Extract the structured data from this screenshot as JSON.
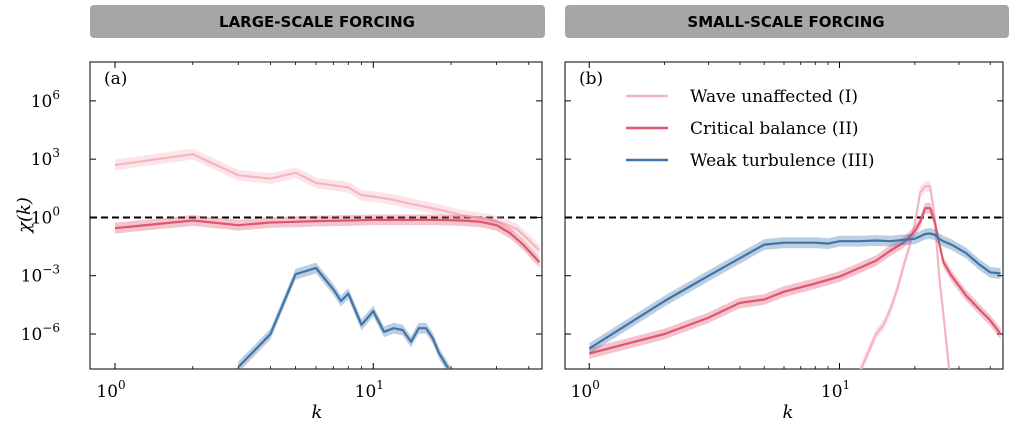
{
  "banners": {
    "left": "LARGE-SCALE FORCING",
    "right": "SMALL-SCALE FORCING"
  },
  "colors": {
    "banner": "#a6a6a6",
    "wave": "#f5b5c0",
    "critical": "#e05570",
    "weak": "#3f74a8",
    "reference": "#000000"
  },
  "chart_data": [
    {
      "type": "line",
      "panel_label": "(a)",
      "xlabel": "k",
      "ylabel": "χ(k)",
      "xscale": "log",
      "yscale": "log",
      "xlim": [
        0.8,
        45
      ],
      "ylim_log10": [
        -7.8,
        8
      ],
      "xticks": [
        {
          "value": 1,
          "base": "10",
          "exp": "0"
        },
        {
          "value": 10,
          "base": "10",
          "exp": "1"
        }
      ],
      "yticks": [
        {
          "value": 1000000.0,
          "base": "10",
          "exp": "6"
        },
        {
          "value": 1000.0,
          "base": "10",
          "exp": "3"
        },
        {
          "value": 1,
          "base": "10",
          "exp": "0"
        },
        {
          "value": 0.001,
          "base": "10",
          "exp": "−3"
        },
        {
          "value": 1e-06,
          "base": "10",
          "exp": "−6"
        }
      ],
      "reference_line": {
        "y": 1,
        "style": "dashed"
      },
      "series": [
        {
          "key": "wave",
          "x": [
            1,
            2,
            3,
            4,
            5,
            6,
            7,
            8,
            9,
            10,
            12,
            14,
            16,
            18,
            20,
            22,
            25,
            28,
            32,
            36,
            40,
            44
          ],
          "y": [
            500,
            1800,
            150,
            100,
            200,
            60,
            45,
            35,
            14,
            12,
            8,
            5,
            3.5,
            2.5,
            1.8,
            1.3,
            1.0,
            0.8,
            0.5,
            0.25,
            0.07,
            0.02
          ]
        },
        {
          "key": "critical",
          "x": [
            1,
            2,
            3,
            4,
            5,
            6,
            8,
            10,
            14,
            18,
            22,
            26,
            30,
            34,
            38,
            44
          ],
          "y": [
            0.28,
            0.7,
            0.4,
            0.55,
            0.6,
            0.65,
            0.7,
            0.75,
            0.75,
            0.75,
            0.7,
            0.6,
            0.4,
            0.15,
            0.04,
            0.005
          ]
        },
        {
          "key": "weak",
          "x": [
            3,
            3.5,
            4,
            5,
            6,
            7,
            7.5,
            8,
            9,
            10,
            11,
            12,
            13,
            14,
            15,
            16,
            17,
            18,
            20
          ],
          "y": [
            2e-08,
            1.6e-07,
            1e-06,
            0.0012,
            0.0025,
            0.0002,
            5e-05,
            0.00012,
            3e-06,
            1.5e-05,
            1.3e-06,
            2e-06,
            1.6e-06,
            4e-07,
            2e-06,
            2e-06,
            6e-07,
            1e-07,
            1e-08
          ]
        }
      ]
    },
    {
      "type": "line",
      "panel_label": "(b)",
      "xlabel": "k",
      "ylabel": "",
      "xscale": "log",
      "yscale": "log",
      "xlim": [
        0.8,
        45
      ],
      "ylim_log10": [
        -7.8,
        8
      ],
      "xticks": [
        {
          "value": 1,
          "base": "10",
          "exp": "0"
        },
        {
          "value": 10,
          "base": "10",
          "exp": "1"
        }
      ],
      "reference_line": {
        "y": 1,
        "style": "dashed"
      },
      "legend": {
        "position": "top-center",
        "entries": [
          {
            "key": "wave",
            "label": "Wave unaffected (I)"
          },
          {
            "key": "critical",
            "label": "Critical balance (II)"
          },
          {
            "key": "weak",
            "label": "Weak turbulence (III)"
          }
        ]
      },
      "series": [
        {
          "key": "wave",
          "x": [
            12,
            14,
            15,
            16,
            17,
            18,
            19,
            20,
            21,
            22,
            23,
            24,
            25,
            26,
            27,
            28
          ],
          "y": [
            1e-08,
            1e-06,
            3e-06,
            2e-05,
            0.0002,
            0.003,
            0.03,
            0.5,
            20,
            40,
            40,
            1.0,
            0.001,
            1e-05,
            1e-07,
            1e-09
          ]
        },
        {
          "key": "critical",
          "x": [
            1,
            2,
            3,
            4,
            5,
            6,
            8,
            10,
            12,
            14,
            16,
            18,
            20,
            21,
            22,
            23,
            24,
            25,
            26,
            28,
            32,
            36,
            40,
            44
          ],
          "y": [
            1e-07,
            1e-06,
            7e-06,
            4e-05,
            6e-05,
            0.00015,
            0.0004,
            0.0009,
            0.0025,
            0.006,
            0.02,
            0.05,
            0.2,
            0.6,
            3,
            3,
            0.6,
            0.05,
            0.005,
            0.001,
            0.0001,
            2e-05,
            5e-06,
            1e-06
          ]
        },
        {
          "key": "weak",
          "x": [
            1,
            2,
            3,
            4,
            5,
            6,
            8,
            9,
            10,
            12,
            14,
            16,
            18,
            20,
            22,
            23,
            24,
            25,
            26,
            28,
            32,
            36,
            40,
            44
          ],
          "y": [
            1.8e-07,
            5e-05,
            0.001,
            0.008,
            0.04,
            0.05,
            0.05,
            0.045,
            0.06,
            0.06,
            0.065,
            0.06,
            0.07,
            0.08,
            0.14,
            0.15,
            0.13,
            0.08,
            0.06,
            0.04,
            0.015,
            0.004,
            0.0015,
            0.0013
          ]
        }
      ]
    }
  ]
}
